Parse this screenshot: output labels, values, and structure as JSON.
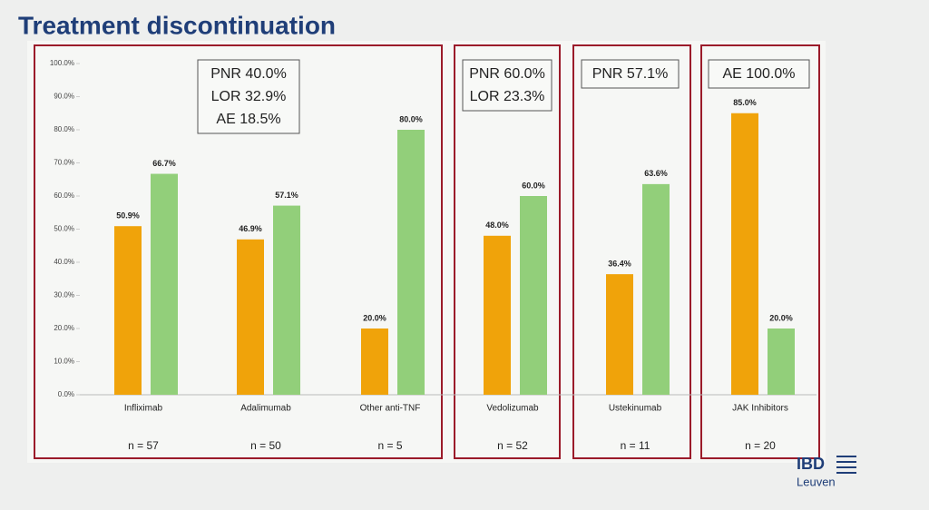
{
  "chart_data": {
    "type": "bar",
    "title": "Treatment discontinuation",
    "categories": [
      "Infliximab",
      "Adalimumab",
      "Other anti-TNF",
      "Vedolizumab",
      "Ustekinumab",
      "JAK Inhibitors"
    ],
    "series": [
      {
        "color": "#f0a30a",
        "values": [
          50.9,
          46.9,
          20.0,
          48.0,
          36.4,
          85.0
        ],
        "value_labels": [
          "50.9%",
          "46.9%",
          "20.0%",
          "48.0%",
          "36.4%",
          "85.0%"
        ]
      },
      {
        "color": "#92cf7a",
        "values": [
          66.7,
          57.1,
          80.0,
          60.0,
          63.6,
          20.0
        ],
        "value_labels": [
          "66.7%",
          "57.1%",
          "80.0%",
          "60.0%",
          "63.6%",
          "20.0%"
        ]
      }
    ],
    "ylim": [
      0,
      100
    ],
    "yticks": [
      {
        "value": 0,
        "label": "0.0%"
      },
      {
        "value": 10,
        "label": "10.0%"
      },
      {
        "value": 20,
        "label": "20.0%"
      },
      {
        "value": 30,
        "label": "30.0%"
      },
      {
        "value": 40,
        "label": "40.0%"
      },
      {
        "value": 50,
        "label": "50.0%"
      },
      {
        "value": 60,
        "label": "60.0%"
      },
      {
        "value": 70,
        "label": "70.0%"
      },
      {
        "value": 80,
        "label": "80.0%"
      },
      {
        "value": 90,
        "label": "90.0%"
      },
      {
        "value": 100,
        "label": "100.0%"
      }
    ],
    "n_labels": [
      "n = 57",
      "n = 50",
      "n = 5",
      "n = 52",
      "n = 11",
      "n = 20"
    ],
    "annotations": [
      {
        "lines": [
          "PNR 40.0%",
          "LOR 32.9%",
          "AE 18.5%"
        ]
      },
      {
        "lines": [
          "PNR 60.0%",
          "LOR 23.3%"
        ]
      },
      {
        "lines": [
          "PNR 57.1%"
        ]
      },
      {
        "lines": [
          "AE 100.0%"
        ]
      }
    ]
  },
  "logo": {
    "line1": "IBD",
    "line2": "Leuven"
  }
}
